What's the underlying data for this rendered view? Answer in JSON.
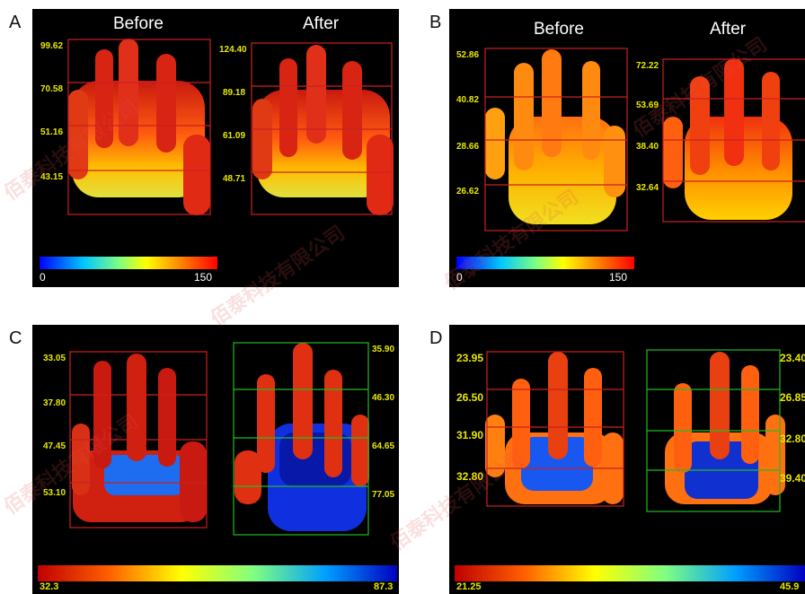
{
  "panels": {
    "A": {
      "letter": "A",
      "before_title": "Before",
      "after_title": "After",
      "before_values": [
        "99.62",
        "70.58",
        "51.16",
        "43.15"
      ],
      "after_values": [
        "124.40",
        "89.18",
        "61.09",
        "48.71"
      ],
      "scale_min": "0",
      "scale_max": "150"
    },
    "B": {
      "letter": "B",
      "before_title": "Before",
      "after_title": "After",
      "before_values": [
        "52.86",
        "40.82",
        "28.66",
        "26.62"
      ],
      "after_values": [
        "72.22",
        "53.69",
        "38.40",
        "32.64"
      ],
      "scale_min": "0",
      "scale_max": "150"
    },
    "C": {
      "letter": "C",
      "before_values": [
        "33.05",
        "37.80",
        "47.45",
        "53.10"
      ],
      "after_values": [
        "35.90",
        "46.30",
        "64.65",
        "77.05"
      ],
      "scale_min": "32.3",
      "scale_max": "87.3"
    },
    "D": {
      "letter": "D",
      "before_values": [
        "23.95",
        "26.50",
        "31.90",
        "32.80"
      ],
      "after_values": [
        "23.40",
        "26.85",
        "32.80",
        "39.40"
      ],
      "scale_min": "21.25",
      "scale_max": "45.9"
    }
  },
  "watermark": "佰泰科技有限公司",
  "colors": {
    "hot": "#e8311e",
    "warm": "#ff8a00",
    "yellow": "#ffd200",
    "blue": "#1030e0",
    "roi_red": "#cc2020",
    "roi_green": "#22bb22",
    "value_text": "#e8e800"
  }
}
